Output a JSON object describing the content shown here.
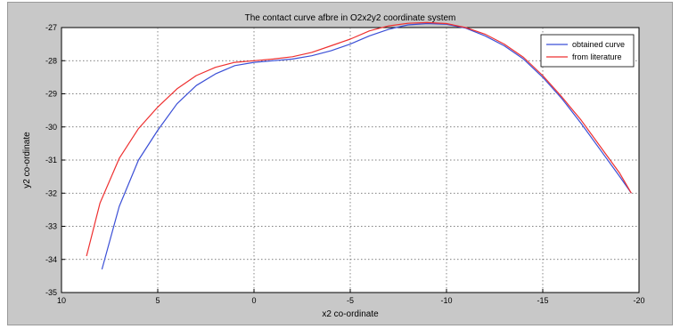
{
  "chart_data": {
    "type": "line",
    "title": "The contact curve afbre in O2x2y2 coordinate system",
    "xlabel": "x2 co-ordinate",
    "ylabel": "y2 co-ordinate",
    "xlim": [
      10,
      -20
    ],
    "ylim": [
      -35,
      -27
    ],
    "x_ticks": [
      10,
      5,
      0,
      -5,
      -10,
      -15,
      -20
    ],
    "x_tick_labels": [
      "10",
      "5",
      "0",
      "-5",
      "-10",
      "-15",
      "-20"
    ],
    "y_ticks": [
      -27,
      -28,
      -29,
      -30,
      -31,
      -32,
      -33,
      -34,
      -35
    ],
    "y_tick_labels": [
      "-27",
      "-28",
      "-29",
      "-30",
      "-31",
      "-32",
      "-33",
      "-34",
      "-35"
    ],
    "grid": true,
    "legend_position": "top-right",
    "series": [
      {
        "name": "obtained curve",
        "color": "#3b4fd6",
        "x": [
          7.9,
          7.0,
          6.0,
          5.0,
          4.0,
          3.0,
          2.0,
          1.0,
          0.0,
          -1.0,
          -2.0,
          -3.0,
          -4.0,
          -5.0,
          -6.0,
          -7.0,
          -8.0,
          -9.0,
          -10.0,
          -11.0,
          -12.0,
          -13.0,
          -14.0,
          -15.0,
          -16.0,
          -17.0,
          -18.0,
          -19.0,
          -19.6
        ],
        "y": [
          -34.3,
          -32.4,
          -31.0,
          -30.1,
          -29.3,
          -28.75,
          -28.4,
          -28.15,
          -28.05,
          -28.0,
          -27.95,
          -27.85,
          -27.7,
          -27.5,
          -27.25,
          -27.05,
          -26.92,
          -26.88,
          -26.9,
          -27.02,
          -27.25,
          -27.55,
          -27.95,
          -28.5,
          -29.15,
          -29.9,
          -30.7,
          -31.5,
          -32.0
        ],
        "width": 1.2
      },
      {
        "name": "from literature",
        "color": "#ee3030",
        "x": [
          8.7,
          8.0,
          7.0,
          6.0,
          5.0,
          4.0,
          3.0,
          2.0,
          1.0,
          0.0,
          -1.0,
          -2.0,
          -3.0,
          -4.0,
          -5.0,
          -6.0,
          -7.0,
          -8.0,
          -9.0,
          -10.0,
          -11.0,
          -12.0,
          -13.0,
          -14.0,
          -15.0,
          -16.0,
          -17.0,
          -18.0,
          -19.0,
          -19.6
        ],
        "y": [
          -33.9,
          -32.3,
          -30.95,
          -30.05,
          -29.4,
          -28.85,
          -28.45,
          -28.2,
          -28.05,
          -28.0,
          -27.95,
          -27.88,
          -27.75,
          -27.55,
          -27.35,
          -27.1,
          -26.95,
          -26.87,
          -26.85,
          -26.88,
          -27.0,
          -27.2,
          -27.5,
          -27.9,
          -28.45,
          -29.1,
          -29.8,
          -30.6,
          -31.4,
          -32.0
        ],
        "width": 1.2
      }
    ]
  }
}
